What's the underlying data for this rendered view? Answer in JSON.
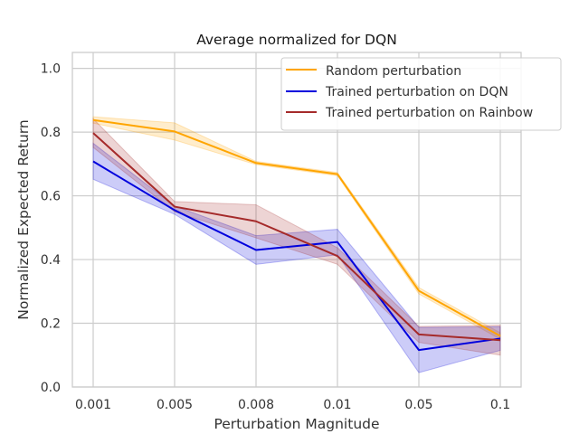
{
  "chart_data": {
    "type": "line",
    "title": "Average normalized for DQN",
    "xlabel": "Perturbation Magnitude",
    "ylabel": "Normalized Expected Return",
    "categories": [
      "0.001",
      "0.005",
      "0.008",
      "0.01",
      "0.05",
      "0.1"
    ],
    "ylim": [
      0.0,
      1.05
    ],
    "yticks": [
      0.0,
      0.2,
      0.4,
      0.6,
      0.8,
      1.0
    ],
    "ytick_labels": [
      "0.0",
      "0.2",
      "0.4",
      "0.6",
      "0.8",
      "1.0"
    ],
    "grid": true,
    "legend_position": "top-right",
    "series": [
      {
        "name": "Random perturbation",
        "color": "#ffa500",
        "values": [
          0.838,
          0.802,
          0.703,
          0.668,
          0.302,
          0.16
        ],
        "lower": [
          0.828,
          0.775,
          0.698,
          0.663,
          0.292,
          0.15
        ],
        "upper": [
          0.848,
          0.829,
          0.708,
          0.673,
          0.312,
          0.17
        ]
      },
      {
        "name": "Trained perturbation on DQN",
        "color": "#0000dd",
        "values": [
          0.708,
          0.555,
          0.43,
          0.455,
          0.116,
          0.152
        ],
        "lower": [
          0.652,
          0.542,
          0.385,
          0.415,
          0.045,
          0.115
        ],
        "upper": [
          0.765,
          0.568,
          0.475,
          0.495,
          0.187,
          0.189
        ]
      },
      {
        "name": "Trained perturbation on Rainbow",
        "color": "#a52a2a",
        "values": [
          0.797,
          0.566,
          0.52,
          0.411,
          0.165,
          0.147
        ],
        "lower": [
          0.752,
          0.55,
          0.468,
          0.385,
          0.14,
          0.1
        ],
        "upper": [
          0.842,
          0.582,
          0.572,
          0.437,
          0.19,
          0.194
        ]
      }
    ]
  }
}
